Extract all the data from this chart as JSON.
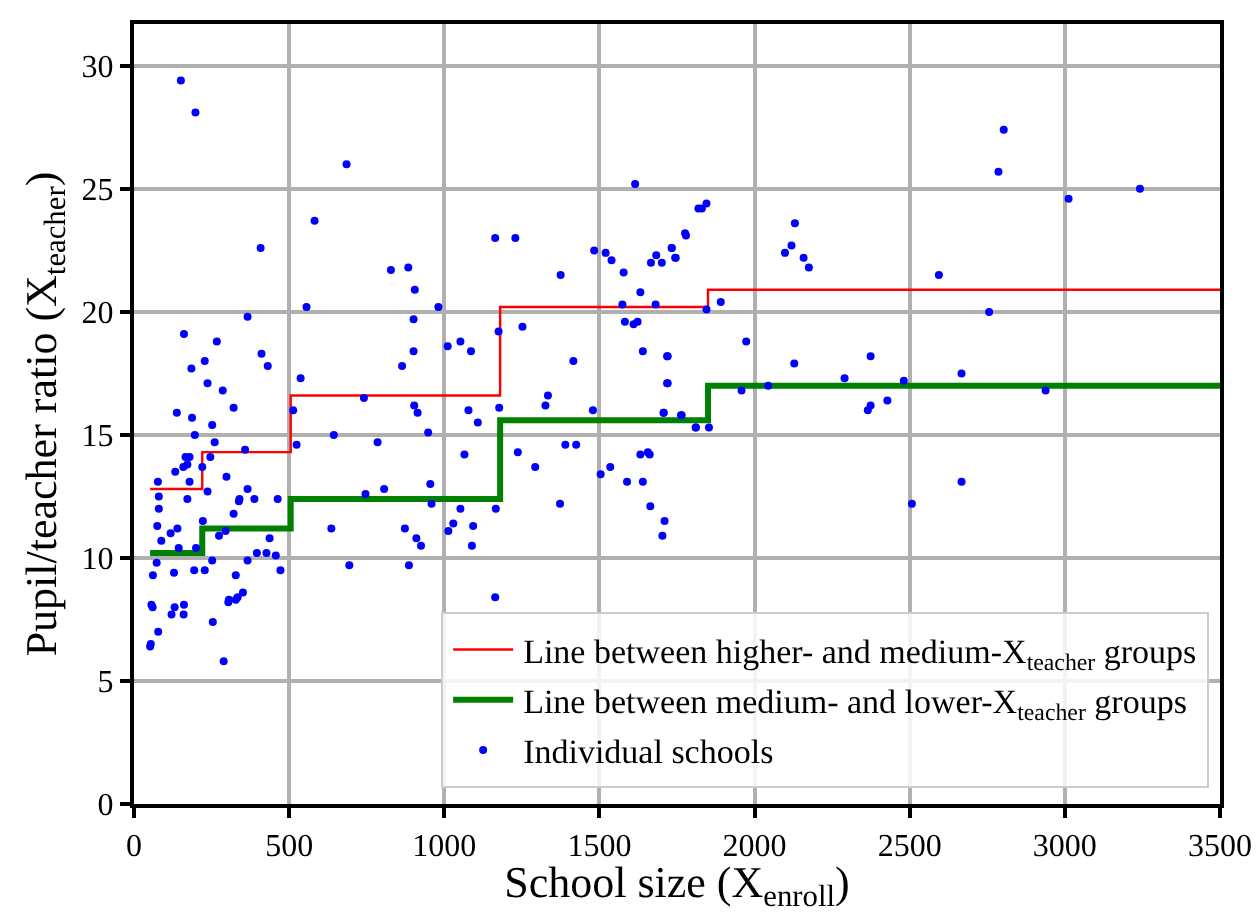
{
  "chart_data": {
    "type": "scatter",
    "xlabel": "School size (X$_{enroll}$)",
    "ylabel": "Pupil/teacher ratio (X$_{teacher}$)",
    "xlim": [
      0,
      3500
    ],
    "ylim": [
      0,
      31.7
    ],
    "xticks": [
      0,
      500,
      1000,
      1500,
      2000,
      2500,
      3000,
      3500
    ],
    "yticks": [
      0,
      5,
      10,
      15,
      20,
      25,
      30
    ],
    "grid": true,
    "legend": "bottom right",
    "series": [
      {
        "name": "Line between higher- and medium-X$_{teacher}$ groups",
        "type": "step",
        "color": "#ff0000",
        "x": [
          52,
          220,
          505,
          1180,
          1850,
          3500
        ],
        "values": [
          12.8,
          14.3,
          16.6,
          20.2,
          20.9,
          20.9
        ]
      },
      {
        "name": "Line between medium- and lower-X$_{teacher}$ groups",
        "type": "step",
        "color": "#008000",
        "x": [
          52,
          220,
          505,
          1180,
          1850,
          3500
        ],
        "values": [
          10.2,
          11.2,
          12.4,
          15.6,
          17.0,
          17.0
        ]
      },
      {
        "name": "Individual schools",
        "color": "#0000ff",
        "marker": "circle",
        "x": [
          151,
          198,
          685,
          1615,
          582,
          408,
          1164,
          1229,
          1819,
          828,
          884,
          905,
          1375,
          1483,
          1520,
          1539,
          1578,
          1683,
          1666,
          1701,
          1733,
          1779,
          1746,
          1632,
          366,
          161,
          556,
          981,
          901,
          1574,
          1582,
          1610,
          1623,
          1681,
          267,
          411,
          431,
          228,
          185,
          237,
          286,
          537,
          1011,
          1052,
          1086,
          901,
          864,
          1175,
          1252,
          1416,
          1640,
          1720,
          1720,
          138,
          187,
          321,
          252,
          513,
          741,
          903,
          914,
          948,
          1078,
          1108,
          1177,
          1326,
          1334,
          1479,
          1707,
          1763,
          1811,
          644,
          196,
          260,
          358,
          524,
          785,
          1065,
          1390,
          1425,
          1632,
          1656,
          1662,
          166,
          179,
          172,
          159,
          133,
          220,
          246,
          298,
          77,
          179,
          366,
          80,
          172,
          237,
          340,
          388,
          463,
          746,
          806,
          955,
          959,
          1237,
          1293,
          1373,
          1504,
          1535,
          1589,
          1640,
          1664,
          1166,
          80,
          75,
          88,
          222,
          274,
          321,
          338,
          295,
          437,
          636,
          873,
          910,
          925,
          1013,
          1029,
          1052,
          1093,
          1089,
          1710,
          1703,
          118,
          140,
          144,
          200,
          396,
          427,
          457,
          366,
          472,
          252,
          194,
          228,
          129,
          73,
          61,
          328,
          694,
          886,
          306,
          334,
          351,
          56,
          60,
          131,
          161,
          121,
          160,
          78,
          54,
          52,
          254,
          289,
          304,
          328,
          1164,
          2803,
          2786,
          3012,
          3242,
          1830,
          1845,
          1776,
          1733,
          1744,
          2130,
          2119,
          2098,
          2158,
          2175,
          2594,
          1891,
          1845,
          2756,
          1973,
          2128,
          2374,
          2667,
          1718,
          1718,
          2290,
          1958,
          2044,
          2938,
          2481,
          2374,
          2365,
          2428,
          1707,
          1765,
          1810,
          1853,
          2667,
          2507
        ],
        "values": [
          29.4,
          28.1,
          26.0,
          25.2,
          23.7,
          22.6,
          23.0,
          23.0,
          24.2,
          21.7,
          21.8,
          20.9,
          21.5,
          22.5,
          22.4,
          22.1,
          21.6,
          22.3,
          22.0,
          22.0,
          22.6,
          23.1,
          22.2,
          20.8,
          19.8,
          19.1,
          20.2,
          20.2,
          19.7,
          20.3,
          19.6,
          19.5,
          19.6,
          20.3,
          18.8,
          18.3,
          17.8,
          18.0,
          17.7,
          17.1,
          16.8,
          17.3,
          18.6,
          18.8,
          18.4,
          18.4,
          17.8,
          19.2,
          19.4,
          18.0,
          18.4,
          18.2,
          17.1,
          15.9,
          15.7,
          16.1,
          15.4,
          16.0,
          16.5,
          16.2,
          15.9,
          15.1,
          16.0,
          15.5,
          16.1,
          16.2,
          16.6,
          16.0,
          15.9,
          15.8,
          15.3,
          15.0,
          15.0,
          14.7,
          14.4,
          14.6,
          14.7,
          14.2,
          14.6,
          14.6,
          14.2,
          14.3,
          14.2,
          14.1,
          14.1,
          13.8,
          13.7,
          13.5,
          13.7,
          14.1,
          13.3,
          13.1,
          13.1,
          12.8,
          12.5,
          12.4,
          12.7,
          12.4,
          12.4,
          12.4,
          12.6,
          12.8,
          13.0,
          12.2,
          14.3,
          13.7,
          12.2,
          13.4,
          13.7,
          13.1,
          13.1,
          12.1,
          12.0,
          12.0,
          11.3,
          10.7,
          11.5,
          10.9,
          11.8,
          12.3,
          11.1,
          10.8,
          11.2,
          11.2,
          10.8,
          10.5,
          11.1,
          11.4,
          12.0,
          11.3,
          10.5,
          11.5,
          10.9,
          11.0,
          11.2,
          10.4,
          10.4,
          10.2,
          10.2,
          10.1,
          9.9,
          9.5,
          9.9,
          9.5,
          9.5,
          9.4,
          9.8,
          9.3,
          9.3,
          9.7,
          9.7,
          8.3,
          8.4,
          8.6,
          8.1,
          8.0,
          8.0,
          8.1,
          7.7,
          7.7,
          7.0,
          6.5,
          6.4,
          7.4,
          5.8,
          8.2,
          8.3,
          8.4,
          27.4,
          25.7,
          24.6,
          25.0,
          24.2,
          24.4,
          23.2,
          22.6,
          22.2,
          23.6,
          22.7,
          22.4,
          22.2,
          21.8,
          21.5,
          20.4,
          20.1,
          20.0,
          18.8,
          17.9,
          18.2,
          17.5,
          18.2,
          17.1,
          17.3,
          16.8,
          17.0,
          16.8,
          17.2,
          16.2,
          16.0,
          16.4,
          15.9,
          15.8,
          15.3,
          15.3,
          13.1,
          12.2
        ]
      }
    ]
  }
}
